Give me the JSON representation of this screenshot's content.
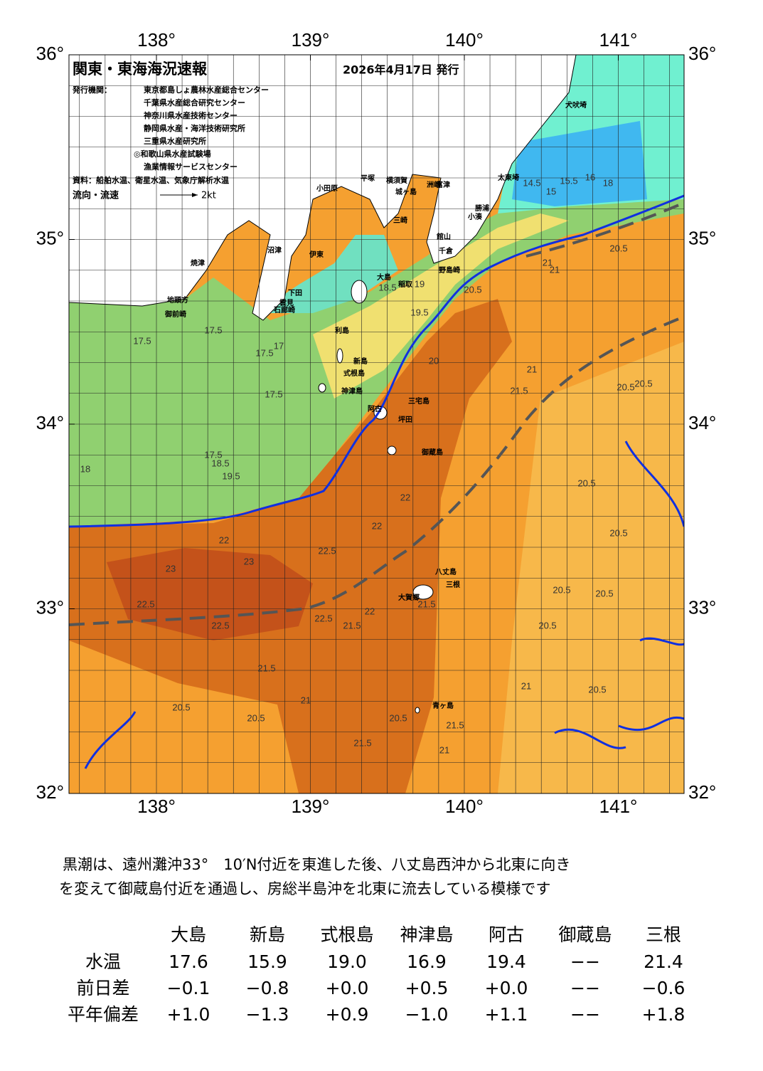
{
  "header": {
    "title": "関東・東海海況速報",
    "date": "2026年4月17日 発行",
    "issuer_label": "発行機関：",
    "issuers": [
      "東京都島しょ農林水産総合センター",
      "千葉県水産総合研究センター",
      "神奈川県水産技術センター",
      "静岡県水産・海洋技術研究所",
      "三重県水産研究所",
      "◎和歌山県水産試験場",
      "漁業情報サービスセンター"
    ],
    "source": "資料：船舶水温、衛星水温、気象庁解析水温",
    "legend_label": "流向・流速",
    "legend_speed": "2kt"
  },
  "map": {
    "lon_ticks": [
      {
        "value": 138,
        "label": "138°"
      },
      {
        "value": 139,
        "label": "139°"
      },
      {
        "value": 140,
        "label": "140°"
      },
      {
        "value": 141,
        "label": "141°"
      }
    ],
    "lat_ticks": [
      {
        "value": 36,
        "label": "36°"
      },
      {
        "value": 35,
        "label": "35°"
      },
      {
        "value": 34,
        "label": "34°"
      },
      {
        "value": 33,
        "label": "33°"
      },
      {
        "value": 32,
        "label": "32°"
      }
    ],
    "places": [
      "犬吠埼",
      "太東埼",
      "勝浦",
      "小湊",
      "館山",
      "千倉",
      "野島崎",
      "洲崎",
      "平塚",
      "横須賀",
      "城ヶ島",
      "富津",
      "三崎",
      "小田原",
      "沼津",
      "伊東",
      "大島",
      "稲取",
      "下田",
      "焼津",
      "御前崎",
      "地頭方",
      "石廊崎",
      "雲見",
      "利島",
      "新島",
      "式根島",
      "神津島",
      "三宅島",
      "阿古",
      "坪田",
      "御蔵島",
      "八丈島",
      "三根",
      "大賀郷",
      "青ヶ島"
    ],
    "contour_labels": [
      "14.5",
      "15",
      "15.5",
      "16",
      "18",
      "17.5",
      "18",
      "17.5",
      "17.5",
      "17.5",
      "17",
      "18.5",
      "19",
      "19.5",
      "20",
      "20.5",
      "20.5",
      "21",
      "21",
      "21",
      "21.5",
      "20.5",
      "20.5",
      "20.5",
      "20.5",
      "17.5",
      "18.5",
      "19.5",
      "22",
      "22",
      "22",
      "22.5",
      "22.5",
      "23",
      "23",
      "22.5",
      "22.5",
      "21.5",
      "21.5",
      "21",
      "21.5",
      "21",
      "20.5",
      "20.5",
      "20.5",
      "20.5",
      "20.5",
      "21",
      "21.5",
      "22",
      "21.5",
      "20.5",
      "20.5"
    ]
  },
  "text": {
    "lines": [
      "黒潮は、遠州灘沖33°　10′N付近を東進した後、八丈島西沖から北東に向き",
      "を変えて御蔵島付近を通過し、房総半島沖を北東に流去している模様です"
    ]
  },
  "table": {
    "columns": [
      "大島",
      "新島",
      "式根島",
      "神津島",
      "阿古",
      "御蔵島",
      "三根"
    ],
    "rows": [
      {
        "label": "水温",
        "values": [
          "17.6",
          "15.9",
          "19.0",
          "16.9",
          "19.4",
          "−−",
          "21.4"
        ]
      },
      {
        "label": "前日差",
        "values": [
          "−0.1",
          "−0.8",
          "+0.0",
          "+0.5",
          "+0.0",
          "−−",
          "−0.6"
        ]
      },
      {
        "label": "平年偏差",
        "values": [
          "+1.0",
          "−1.3",
          "+0.9",
          "−1.0",
          "+1.1",
          "−−",
          "+1.8"
        ]
      }
    ]
  }
}
